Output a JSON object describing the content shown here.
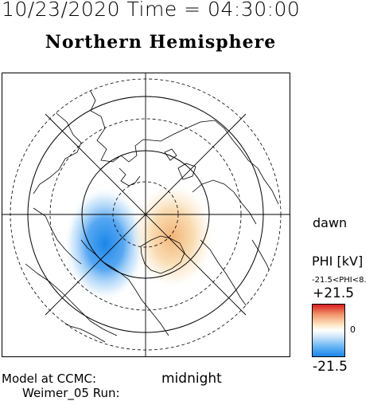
{
  "header": {
    "date_time": "10/23/2020 Time = 04:30:00",
    "hemisphere": "Northern Hemisphere"
  },
  "map": {
    "orientation_right": "dawn",
    "orientation_bottom": "midnight",
    "projection": "polar",
    "coastline_color": "#000000",
    "grid_style": "solid and dashed latitude circles, radial meridian lines"
  },
  "legend": {
    "quantity_label": "PHI [kV]",
    "range_text": "-21.5<PHI<8.",
    "max_label": "+21.5",
    "mid_label": "0",
    "min_label": "-21.5",
    "colors": {
      "positive": "#d82020",
      "zero": "#ffffff",
      "negative": "#1a86e8"
    }
  },
  "footer": {
    "model_label": "Model at CCMC:",
    "run_label": "Weimer_05 Run:"
  }
}
